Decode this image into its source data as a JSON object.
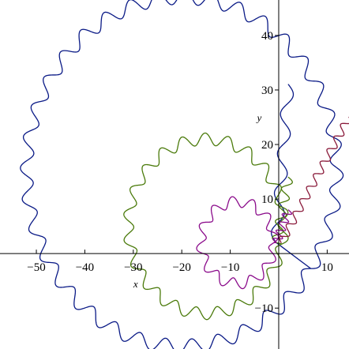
{
  "chart_data": {
    "type": "line",
    "xlabel": "x",
    "ylabel": "y",
    "xlim": [
      -57.5,
      14.5
    ],
    "ylim": [
      -17.5,
      46.5
    ],
    "x_ticks": [
      -50,
      -40,
      -30,
      -20,
      -10,
      10
    ],
    "y_ticks": [
      -10,
      10,
      20,
      30,
      40
    ],
    "x_tick_labels": [
      "−50",
      "−40",
      "−30",
      "−20",
      "−10",
      "10"
    ],
    "y_tick_labels": [
      "−10",
      "10",
      "20",
      "30",
      "40"
    ],
    "grid": false,
    "legend": "none",
    "series": [
      {
        "color": "#0a1a86",
        "center": [
          -20,
          15
        ],
        "radius": 32,
        "wobble_amplitude": 1.3,
        "wobble_count": 36,
        "start_point": [
          -0.5,
          2
        ],
        "tail_end": [
          2,
          31
        ]
      },
      {
        "color": "#4a7a0a",
        "center": [
          -15,
          5
        ],
        "radius": 16,
        "wobble_amplitude": 1.1,
        "wobble_count": 22,
        "start_point": [
          -0.5,
          2
        ],
        "tail_end": [
          2,
          14
        ]
      },
      {
        "color": "#8a0a8a",
        "center": [
          -8.5,
          2
        ],
        "radius": 7.5,
        "wobble_amplitude": 1.0,
        "wobble_count": 12,
        "start_point": [
          -0.5,
          2
        ],
        "tail_end": [
          2,
          8
        ]
      },
      {
        "color": "#8a1a3a",
        "center": null,
        "radius": null,
        "wobble_amplitude": 0.9,
        "wobble_count": 10,
        "start_point": [
          0.5,
          2
        ],
        "tail_end": [
          14.5,
          25
        ]
      }
    ]
  }
}
